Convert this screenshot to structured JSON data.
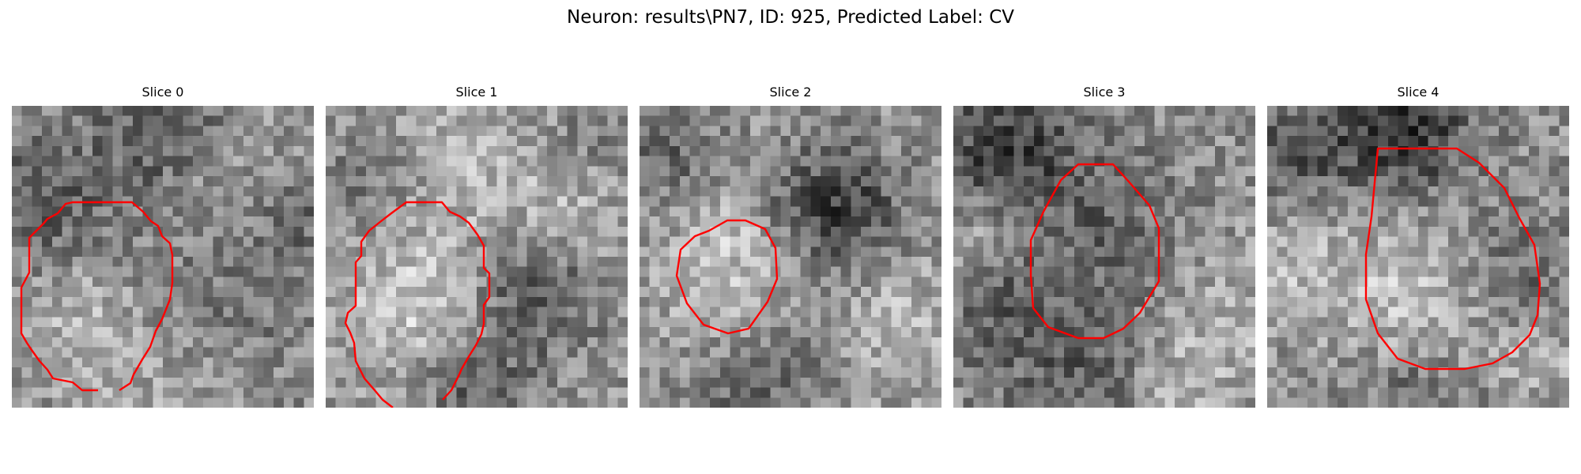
{
  "figure": {
    "title": "Neuron: results\\PN7, ID: 925, Predicted Label: CV"
  },
  "slices": [
    {
      "label": "Slice 0"
    },
    {
      "label": "Slice 1"
    },
    {
      "label": "Slice 2"
    },
    {
      "label": "Slice 3"
    },
    {
      "label": "Slice 4"
    }
  ],
  "colors": {
    "contour": "#ff0000"
  }
}
